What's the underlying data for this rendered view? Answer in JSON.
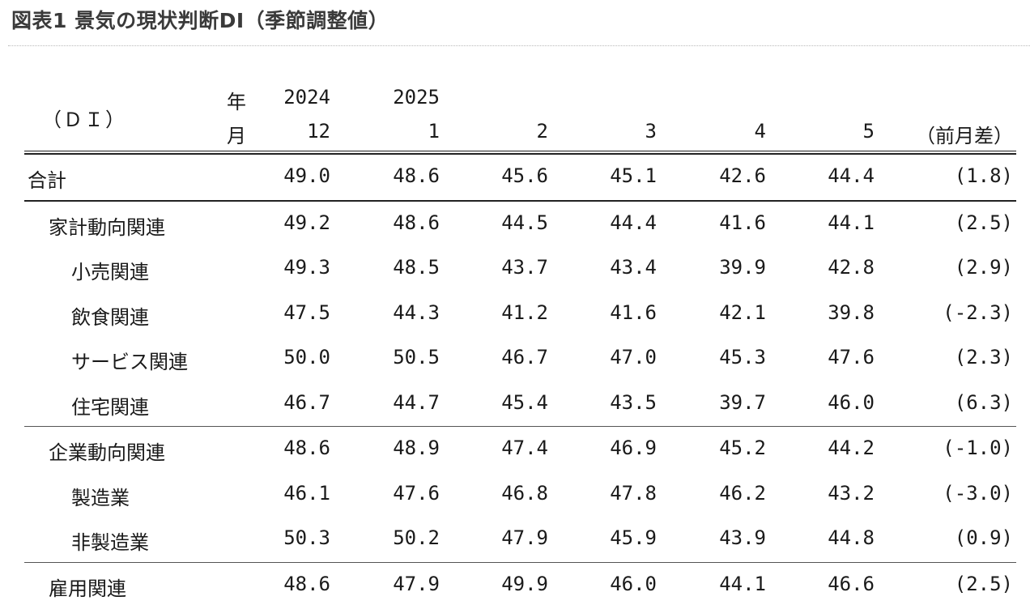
{
  "title": "図表1 景気の現状判断DI（季節調整値）",
  "header": {
    "unit_label": "（ＤＩ）",
    "year_label": "年",
    "month_label": "月",
    "years": [
      "2024",
      "2025",
      "",
      "",
      "",
      ""
    ],
    "months": [
      "12",
      "1",
      "2",
      "3",
      "4",
      "5"
    ],
    "diff_label": "（前月差）"
  },
  "rows": [
    {
      "label": "合計",
      "values": [
        "49.0",
        "48.6",
        "45.6",
        "45.1",
        "42.6",
        "44.4"
      ],
      "diff": "(1.8)"
    },
    {
      "label": "家計動向関連",
      "values": [
        "49.2",
        "48.6",
        "44.5",
        "44.4",
        "41.6",
        "44.1"
      ],
      "diff": "(2.5)"
    },
    {
      "label": "小売関連",
      "values": [
        "49.3",
        "48.5",
        "43.7",
        "43.4",
        "39.9",
        "42.8"
      ],
      "diff": "(2.9)"
    },
    {
      "label": "飲食関連",
      "values": [
        "47.5",
        "44.3",
        "41.2",
        "41.6",
        "42.1",
        "39.8"
      ],
      "diff": "(-2.3)"
    },
    {
      "label": "サービス関連",
      "values": [
        "50.0",
        "50.5",
        "46.7",
        "47.0",
        "45.3",
        "47.6"
      ],
      "diff": "(2.3)"
    },
    {
      "label": "住宅関連",
      "values": [
        "46.7",
        "44.7",
        "45.4",
        "43.5",
        "39.7",
        "46.0"
      ],
      "diff": "(6.3)"
    },
    {
      "label": "企業動向関連",
      "values": [
        "48.6",
        "48.9",
        "47.4",
        "46.9",
        "45.2",
        "44.2"
      ],
      "diff": "(-1.0)"
    },
    {
      "label": "製造業",
      "values": [
        "46.1",
        "47.6",
        "46.8",
        "47.8",
        "46.2",
        "43.2"
      ],
      "diff": "(-3.0)"
    },
    {
      "label": "非製造業",
      "values": [
        "50.3",
        "50.2",
        "47.9",
        "45.9",
        "43.9",
        "44.8"
      ],
      "diff": "(0.9)"
    },
    {
      "label": "雇用関連",
      "values": [
        "48.6",
        "47.9",
        "49.9",
        "46.0",
        "44.1",
        "46.6"
      ],
      "diff": "(2.5)"
    }
  ]
}
